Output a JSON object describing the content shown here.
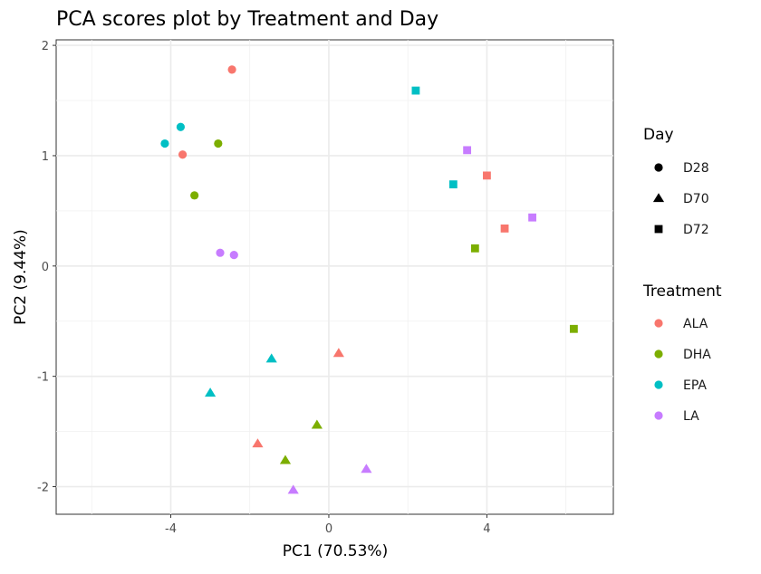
{
  "chart_data": {
    "type": "scatter",
    "title": "PCA scores plot by Treatment and Day",
    "xlabel": "PC1 (70.53%)",
    "ylabel": "PC2 (9.44%)",
    "xlim": [
      -6.9,
      7.2
    ],
    "ylim": [
      -2.25,
      2.05
    ],
    "xticks": [
      -4,
      0,
      4
    ],
    "yticks": [
      -2,
      -1,
      0,
      1,
      2
    ],
    "grid": true,
    "legends": [
      {
        "title": "Day",
        "items": [
          {
            "label": "D28",
            "shape": "circle"
          },
          {
            "label": "D70",
            "shape": "triangle"
          },
          {
            "label": "D72",
            "shape": "square"
          }
        ]
      },
      {
        "title": "Treatment",
        "items": [
          {
            "label": "ALA",
            "color": "#F8766D"
          },
          {
            "label": "DHA",
            "color": "#7CAE00"
          },
          {
            "label": "EPA",
            "color": "#00BFC4"
          },
          {
            "label": "LA",
            "color": "#C77CFF"
          }
        ]
      }
    ],
    "points": [
      {
        "x": -2.45,
        "y": 1.78,
        "treatment": "ALA",
        "day": "D28"
      },
      {
        "x": -3.7,
        "y": 1.01,
        "treatment": "ALA",
        "day": "D28"
      },
      {
        "x": -2.8,
        "y": 1.11,
        "treatment": "DHA",
        "day": "D28"
      },
      {
        "x": -3.4,
        "y": 0.64,
        "treatment": "DHA",
        "day": "D28"
      },
      {
        "x": -3.75,
        "y": 1.26,
        "treatment": "EPA",
        "day": "D28"
      },
      {
        "x": -4.15,
        "y": 1.11,
        "treatment": "EPA",
        "day": "D28"
      },
      {
        "x": -2.75,
        "y": 0.12,
        "treatment": "LA",
        "day": "D28"
      },
      {
        "x": -2.4,
        "y": 0.1,
        "treatment": "LA",
        "day": "D28"
      },
      {
        "x": 0.25,
        "y": -0.79,
        "treatment": "ALA",
        "day": "D70"
      },
      {
        "x": -1.8,
        "y": -1.61,
        "treatment": "ALA",
        "day": "D70"
      },
      {
        "x": -0.3,
        "y": -1.44,
        "treatment": "DHA",
        "day": "D70"
      },
      {
        "x": -1.1,
        "y": -1.76,
        "treatment": "DHA",
        "day": "D70"
      },
      {
        "x": -1.45,
        "y": -0.84,
        "treatment": "EPA",
        "day": "D70"
      },
      {
        "x": -3.0,
        "y": -1.15,
        "treatment": "EPA",
        "day": "D70"
      },
      {
        "x": 0.95,
        "y": -1.84,
        "treatment": "LA",
        "day": "D70"
      },
      {
        "x": -0.9,
        "y": -2.03,
        "treatment": "LA",
        "day": "D70"
      },
      {
        "x": 4.0,
        "y": 0.82,
        "treatment": "ALA",
        "day": "D72"
      },
      {
        "x": 4.45,
        "y": 0.34,
        "treatment": "ALA",
        "day": "D72"
      },
      {
        "x": 3.7,
        "y": 0.16,
        "treatment": "DHA",
        "day": "D72"
      },
      {
        "x": 6.2,
        "y": -0.57,
        "treatment": "DHA",
        "day": "D72"
      },
      {
        "x": 2.2,
        "y": 1.59,
        "treatment": "EPA",
        "day": "D72"
      },
      {
        "x": 3.15,
        "y": 0.74,
        "treatment": "EPA",
        "day": "D72"
      },
      {
        "x": 3.5,
        "y": 1.05,
        "treatment": "LA",
        "day": "D72"
      },
      {
        "x": 5.15,
        "y": 0.44,
        "treatment": "LA",
        "day": "D72"
      }
    ]
  }
}
